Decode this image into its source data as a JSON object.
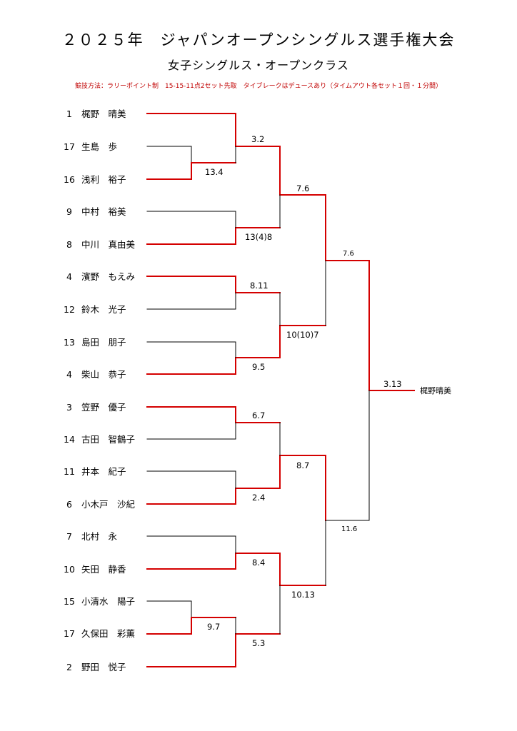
{
  "header": {
    "title": "２０２５年　ジャパンオープンシングルス選手権大会",
    "subtitle": "女子シングルス・オープンクラス",
    "rules": "競技方法：ラリーポイント制　15-15-11点2セット先取　タイブレークはデュースあり（タイムアウト各セット１回・１分間）"
  },
  "players": [
    {
      "seed": "1",
      "name": "梶野　晴美"
    },
    {
      "seed": "17",
      "name": "生島　歩"
    },
    {
      "seed": "16",
      "name": "浅利　裕子"
    },
    {
      "seed": "9",
      "name": "中村　裕美"
    },
    {
      "seed": "8",
      "name": "中川　真由美"
    },
    {
      "seed": "4",
      "name": "濱野　もえみ"
    },
    {
      "seed": "12",
      "name": "鈴木　光子"
    },
    {
      "seed": "13",
      "name": "島田　朋子"
    },
    {
      "seed": "4",
      "name": "柴山　恭子"
    },
    {
      "seed": "3",
      "name": "笠野　優子"
    },
    {
      "seed": "14",
      "name": "古田　智鶴子"
    },
    {
      "seed": "11",
      "name": "井本　紀子"
    },
    {
      "seed": "6",
      "name": "小木戸　沙紀"
    },
    {
      "seed": "7",
      "name": "北村　永"
    },
    {
      "seed": "10",
      "name": "矢田　静香"
    },
    {
      "seed": "15",
      "name": "小清水　陽子"
    },
    {
      "seed": "17",
      "name": "久保田　彩薫"
    },
    {
      "seed": "2",
      "name": "野田　悦子"
    }
  ],
  "scores": {
    "r0_top": "13.4",
    "r0_bottom": "9.7",
    "r1_1": "3.2",
    "r1_2": "13(4)8",
    "r1_3": "8.11",
    "r1_4": "9.5",
    "r1_5": "6.7",
    "r1_6": "2.4",
    "r1_7": "8.4",
    "r1_8": "5.3",
    "qf_1": "7.6",
    "qf_2": "10(10)7",
    "qf_3": "8.7",
    "qf_4": "10.13",
    "sf_1": "7.6",
    "sf_2": "11.6",
    "final": "3.13"
  },
  "champion": "梶野晴美",
  "colors": {
    "winner_line": "#d40000",
    "loser_line": "#000000",
    "rules_text": "#c00000"
  }
}
